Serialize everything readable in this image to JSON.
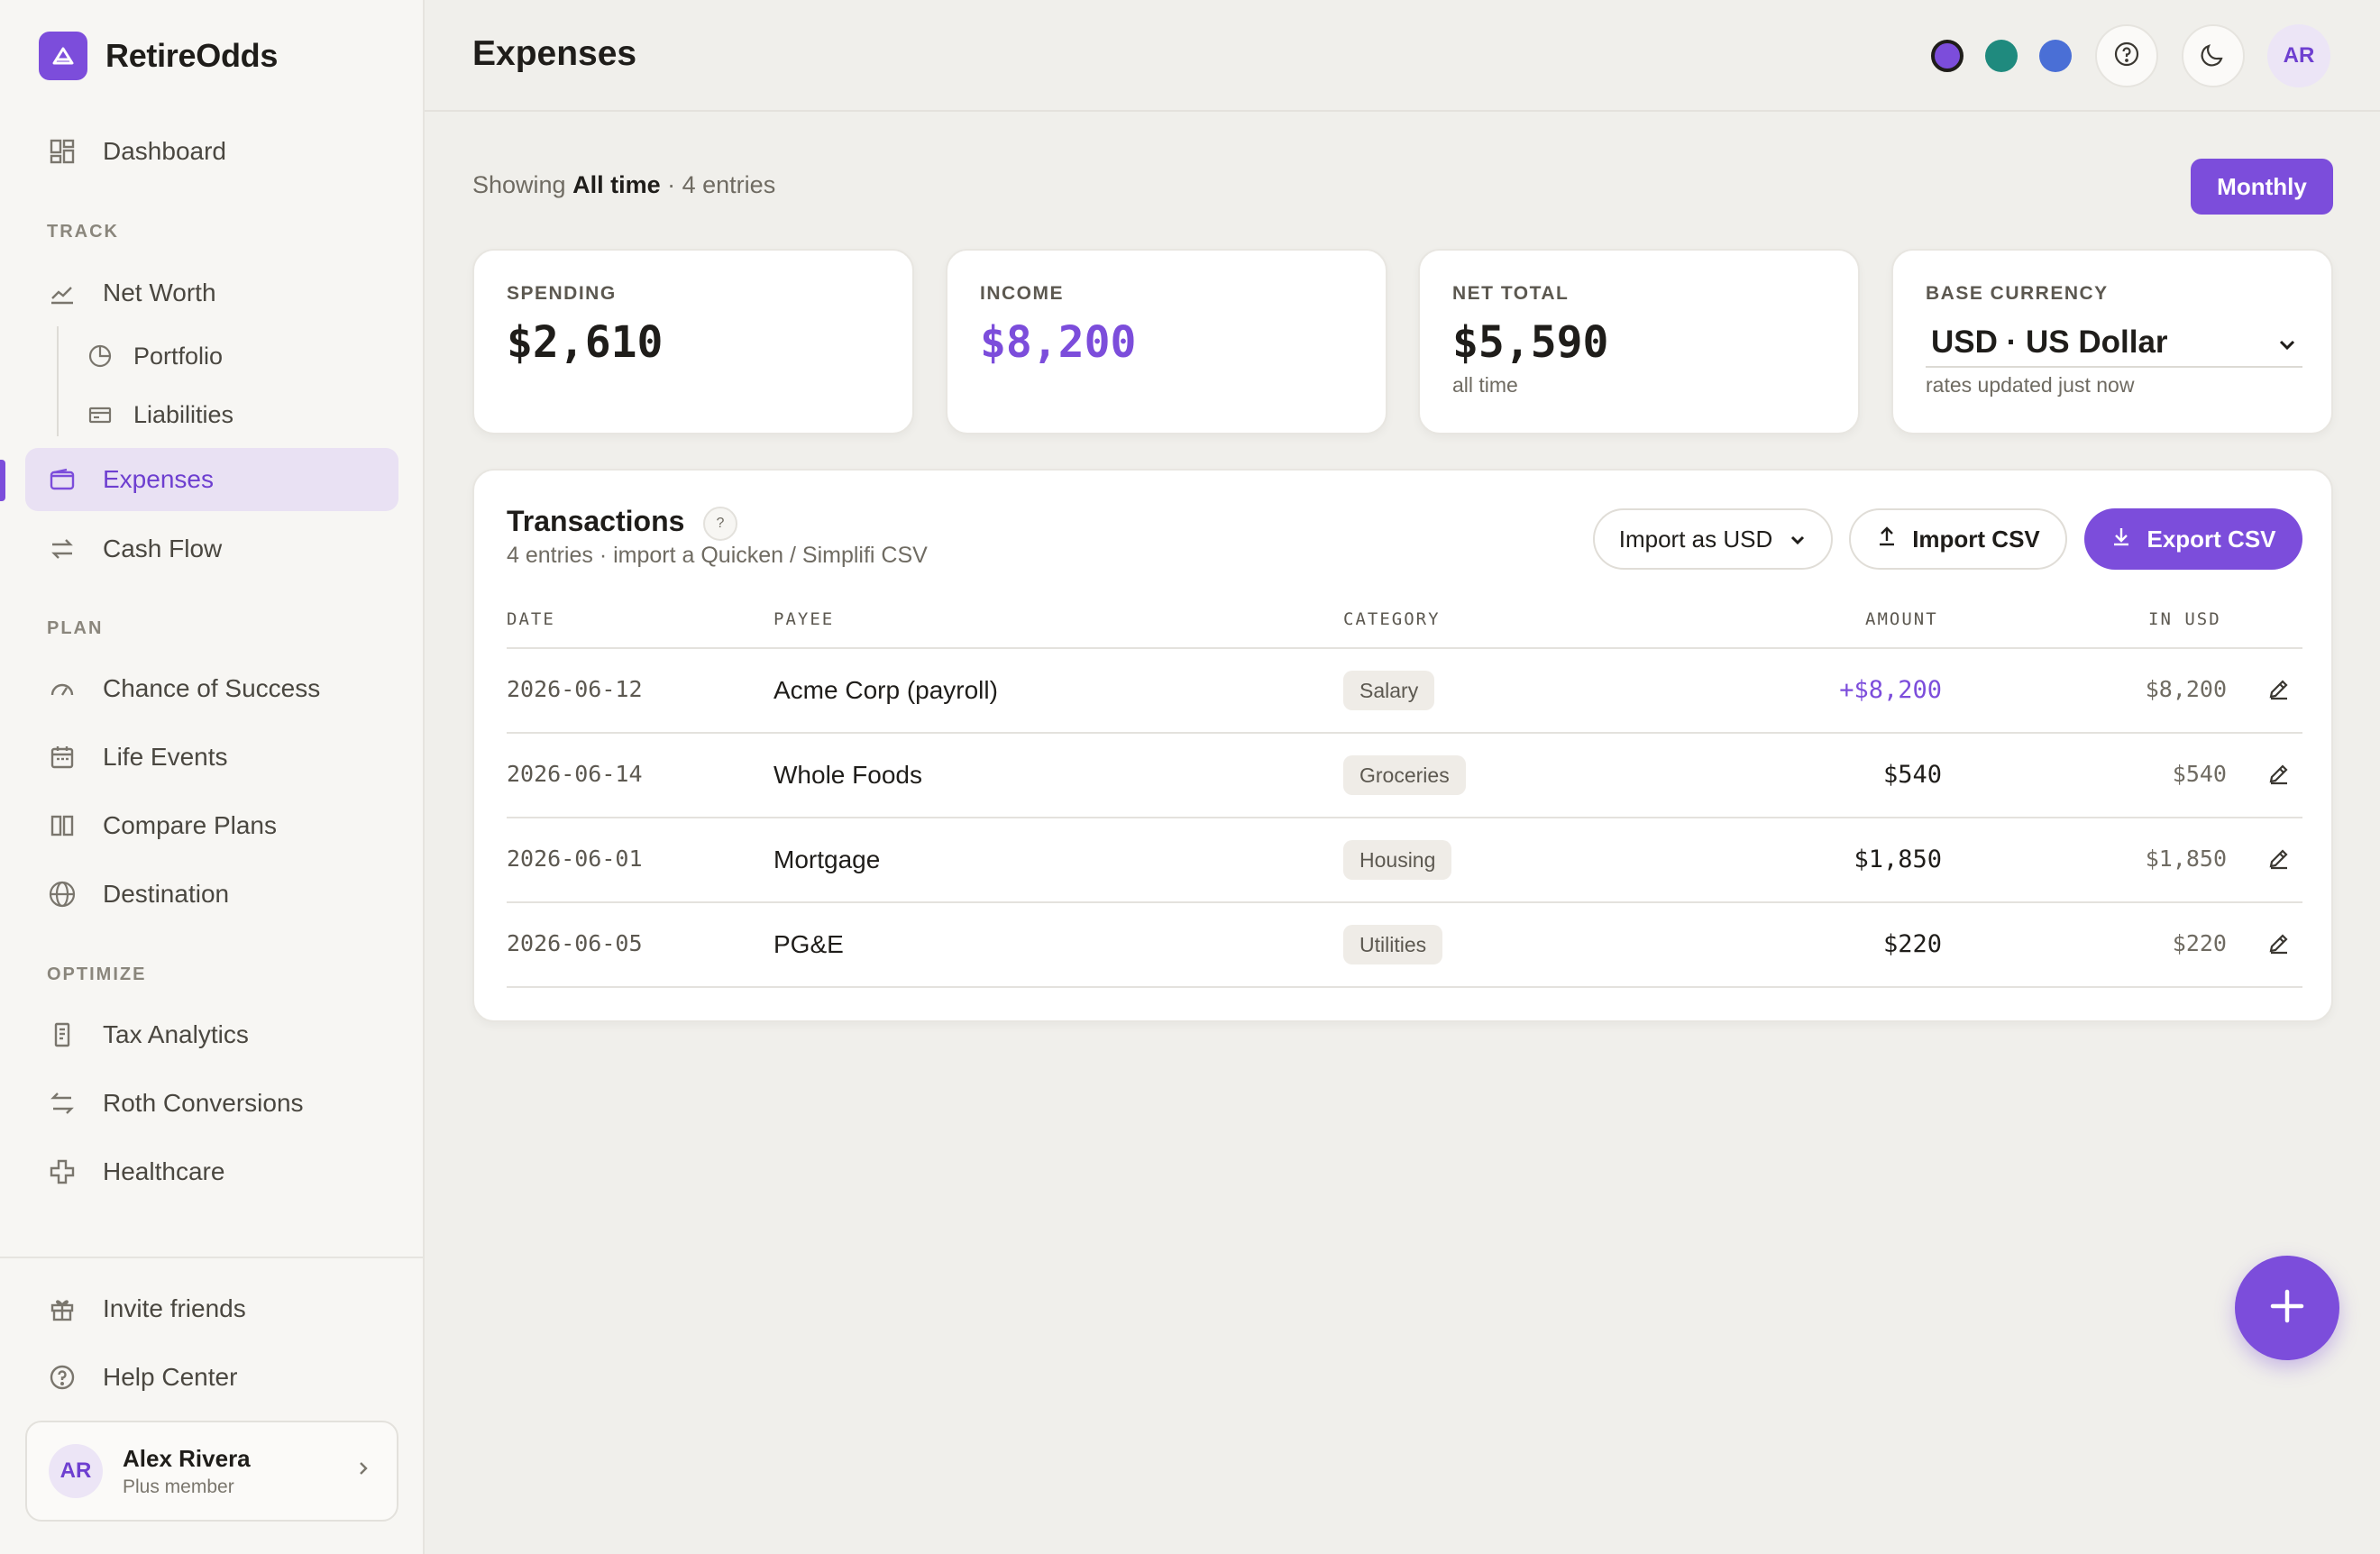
{
  "app": {
    "name": "RetireOdds"
  },
  "sidebar": {
    "dashboard": "Dashboard",
    "sections": {
      "track": "TRACK",
      "plan": "PLAN",
      "optimize": "OPTIMIZE"
    },
    "track": {
      "net_worth": "Net Worth",
      "portfolio": "Portfolio",
      "liabilities": "Liabilities",
      "expenses": "Expenses",
      "cash_flow": "Cash Flow"
    },
    "plan": {
      "chance": "Chance of Success",
      "life_events": "Life Events",
      "compare": "Compare Plans",
      "destination": "Destination"
    },
    "optimize": {
      "tax": "Tax Analytics",
      "roth": "Roth Conversions",
      "health": "Healthcare"
    },
    "footer": {
      "invite": "Invite friends",
      "help": "Help Center"
    },
    "user": {
      "initials": "AR",
      "name": "Alex Rivera",
      "plan": "Plus member"
    }
  },
  "header": {
    "title": "Expenses",
    "theme_colors": [
      "#7c4ddb",
      "#1f8a7e",
      "#4a6fd6"
    ],
    "avatar_initials": "AR"
  },
  "filter": {
    "prefix": "Showing",
    "range": "All time",
    "suffix": "· 4 entries",
    "period_button": "Monthly"
  },
  "stats": {
    "spending": {
      "label": "SPENDING",
      "value": "$2,610"
    },
    "income": {
      "label": "INCOME",
      "value": "$8,200"
    },
    "net": {
      "label": "NET TOTAL",
      "value": "$5,590",
      "sub": "all time"
    },
    "currency": {
      "label": "BASE CURRENCY",
      "value": "USD · US Dollar",
      "sub": "rates updated just now"
    }
  },
  "transactions": {
    "title": "Transactions",
    "help": "?",
    "subtitle": "4 entries · import a Quicken / Simplifi CSV",
    "import_as": "Import as USD",
    "import_csv": "Import CSV",
    "export_csv": "Export CSV",
    "columns": {
      "date": "DATE",
      "payee": "PAYEE",
      "category": "CATEGORY",
      "amount": "AMOUNT",
      "usd": "IN USD"
    },
    "rows": [
      {
        "date": "2026-06-12",
        "payee": "Acme Corp (payroll)",
        "category": "Salary",
        "amount": "+$8,200",
        "usd": "$8,200"
      },
      {
        "date": "2026-06-14",
        "payee": "Whole Foods",
        "category": "Groceries",
        "amount": "$540",
        "usd": "$540"
      },
      {
        "date": "2026-06-01",
        "payee": "Mortgage",
        "category": "Housing",
        "amount": "$1,850",
        "usd": "$1,850"
      },
      {
        "date": "2026-06-05",
        "payee": "PG&E",
        "category": "Utilities",
        "amount": "$220",
        "usd": "$220"
      }
    ]
  },
  "icons": {
    "brand": "triangle-logo-icon",
    "dashboard": "grid-icon",
    "net_worth": "line-chart-icon",
    "portfolio": "pie-chart-icon",
    "liabilities": "card-icon",
    "expenses": "wallet-icon",
    "cash_flow": "arrows-icon",
    "chance": "gauge-icon",
    "life_events": "calendar-icon",
    "compare": "columns-icon",
    "destination": "globe-icon",
    "tax": "receipt-icon",
    "roth": "swap-icon",
    "health": "cross-icon",
    "invite": "gift-icon",
    "help": "help-circle-icon",
    "fab": "plus-icon"
  },
  "colors": {
    "accent": "#7c4ddb",
    "background": "#f0efeb",
    "sidebar": "#f7f6f3"
  }
}
